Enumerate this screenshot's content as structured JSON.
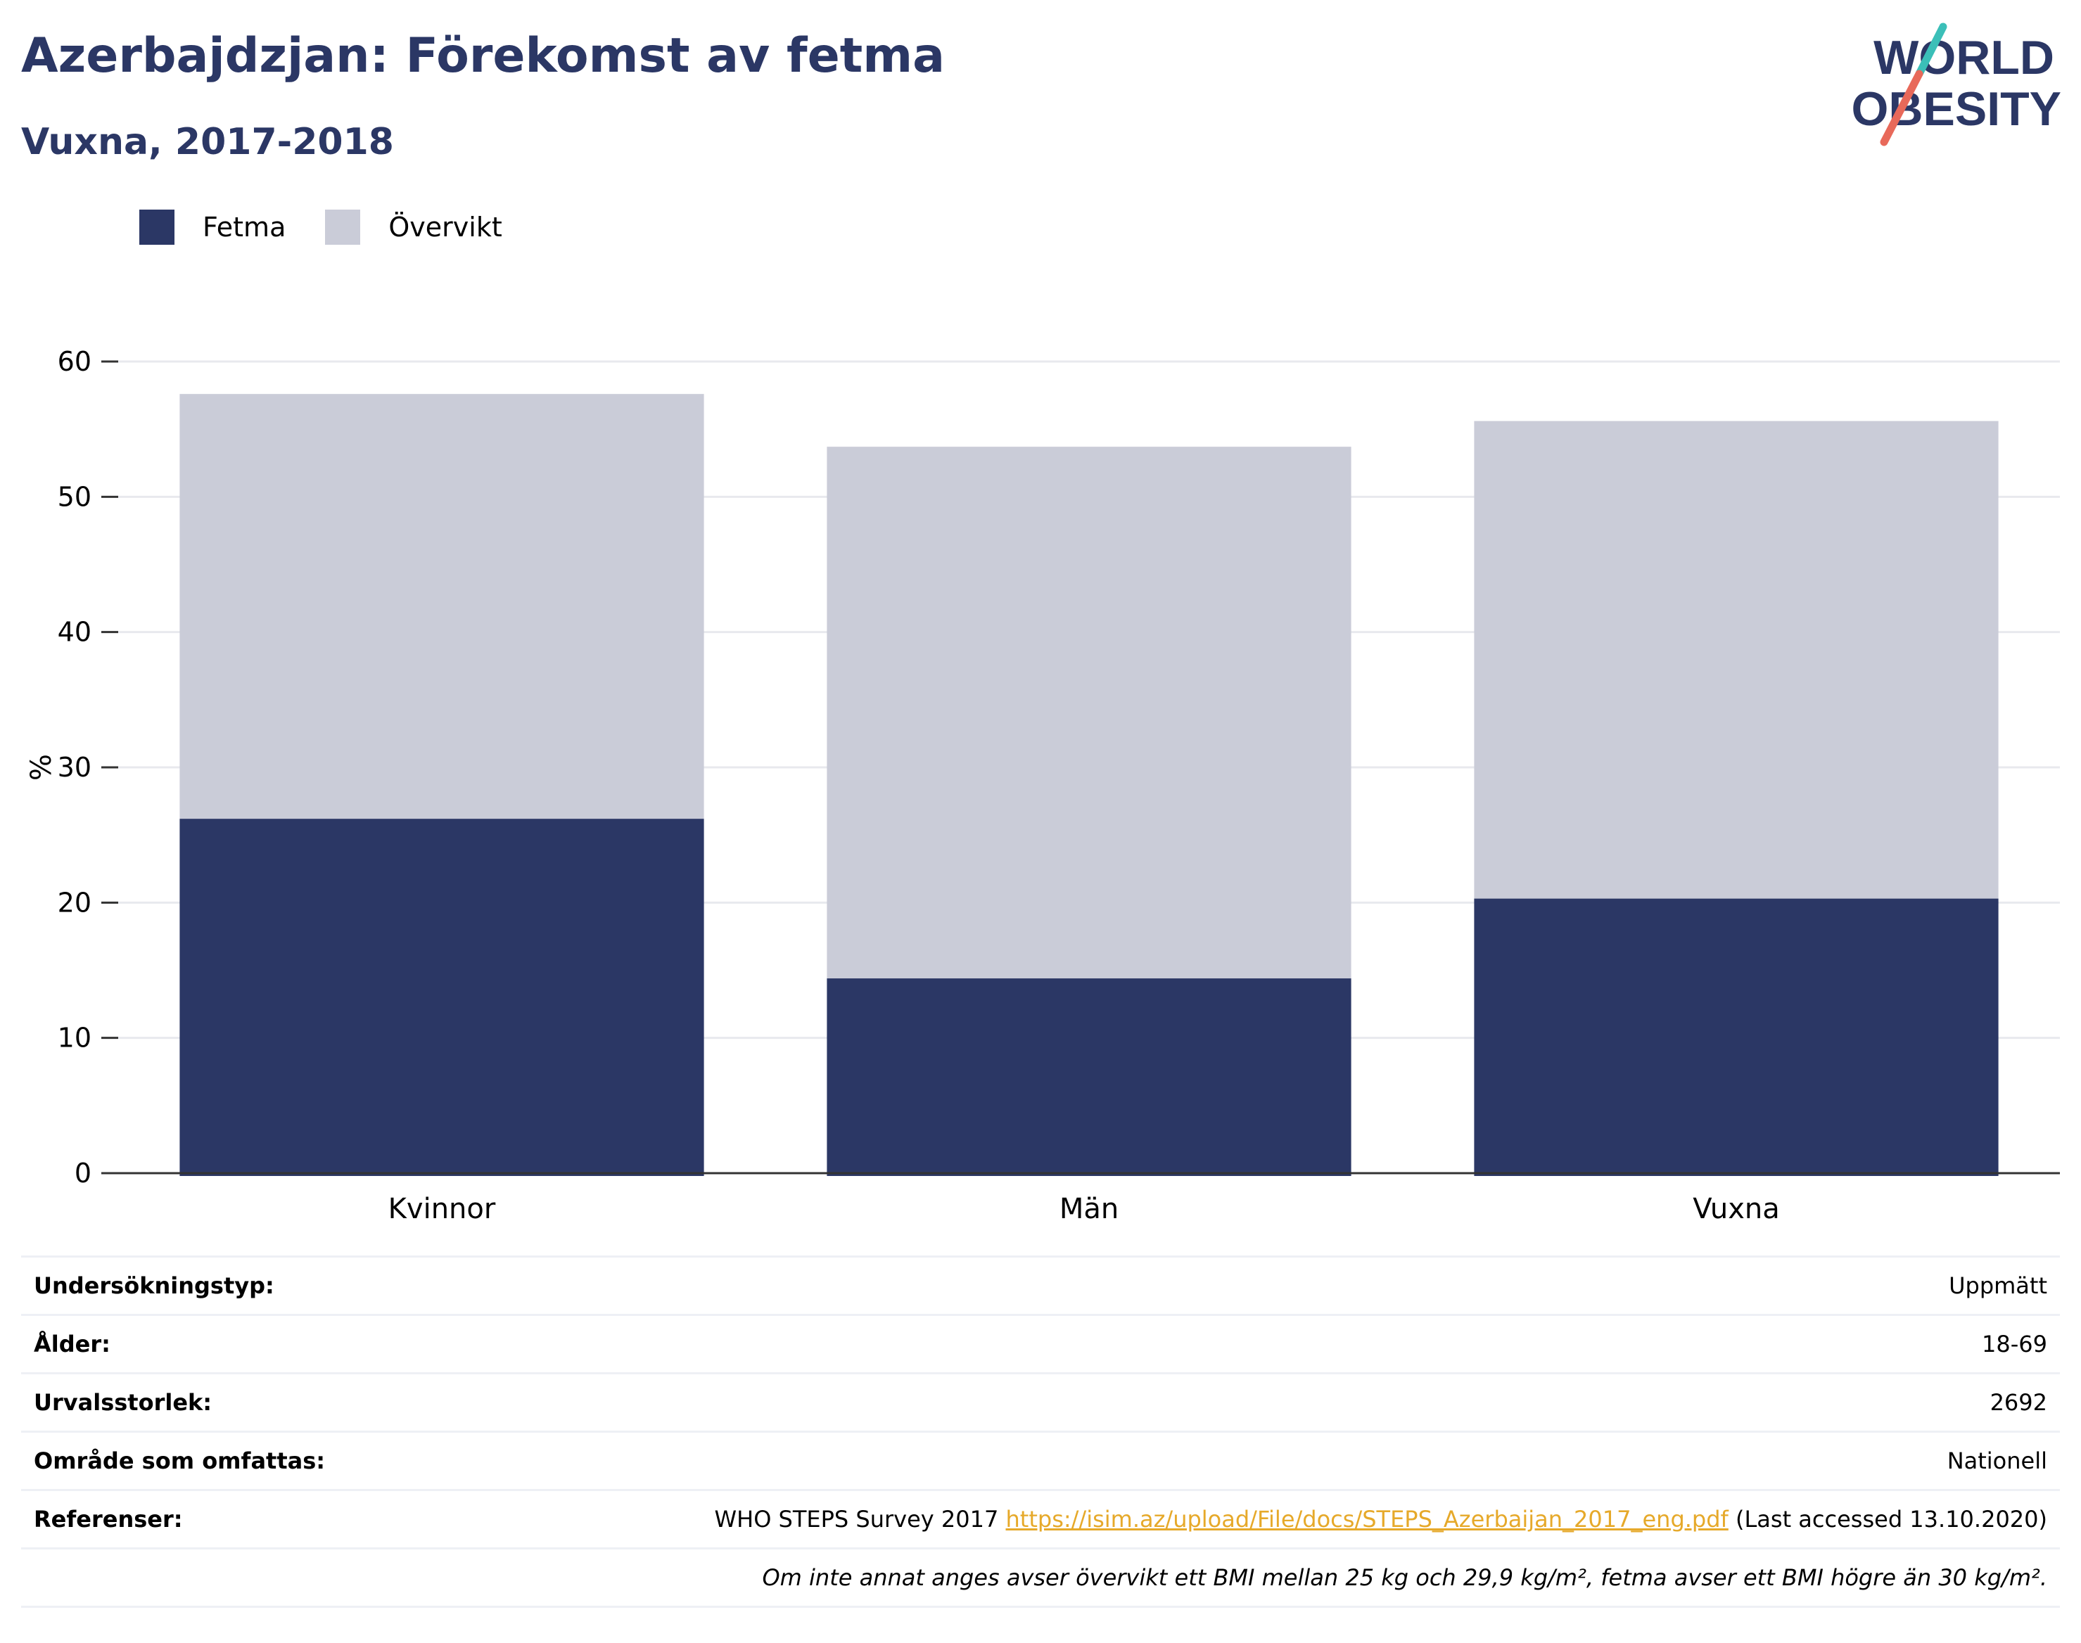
{
  "header": {
    "title": "Azerbajdzjan: Förekomst av fetma",
    "subtitle": "Vuxna, 2017-2018"
  },
  "logo": {
    "line1": "WORLD",
    "line2": "OBESITY",
    "text_color": "#2b3765",
    "slash_teal": "#3bbfb8",
    "slash_red": "#e8695a"
  },
  "chart_data": {
    "type": "bar",
    "stacked": true,
    "categories": [
      "Kvinnor",
      "Män",
      "Vuxna"
    ],
    "series": [
      {
        "name": "Fetma",
        "color": "#2b3765",
        "values": [
          26.2,
          14.4,
          20.3
        ]
      },
      {
        "name": "Övervikt",
        "color": "#caccd8",
        "values": [
          31.4,
          39.3,
          35.3
        ]
      }
    ],
    "title": "Azerbajdzjan: Förekomst av fetma",
    "subtitle": "Vuxna, 2017-2018",
    "ylabel": "%",
    "ylim": [
      0,
      60
    ],
    "yticks": [
      0,
      10,
      20,
      30,
      40,
      50,
      60
    ],
    "grid": true,
    "legend_position": "top-left"
  },
  "info": {
    "rows": [
      {
        "label": "Undersökningstyp:",
        "value": "Uppmätt"
      },
      {
        "label": "Ålder:",
        "value": "18-69"
      },
      {
        "label": "Urvalsstorlek:",
        "value": "2692"
      },
      {
        "label": "Område som omfattas:",
        "value": "Nationell"
      }
    ],
    "references": {
      "label": "Referenser:",
      "prefix": "WHO STEPS Survey 2017",
      "link": "https://isim.az/upload/File/docs/STEPS_Azerbaijan_2017_eng.pdf",
      "suffix": "(Last accessed 13.10.2020)"
    },
    "note": "Om inte annat anges avser övervikt ett BMI mellan 25 kg och 29,9 kg/m², fetma avser ett BMI högre än 30 kg/m²."
  }
}
